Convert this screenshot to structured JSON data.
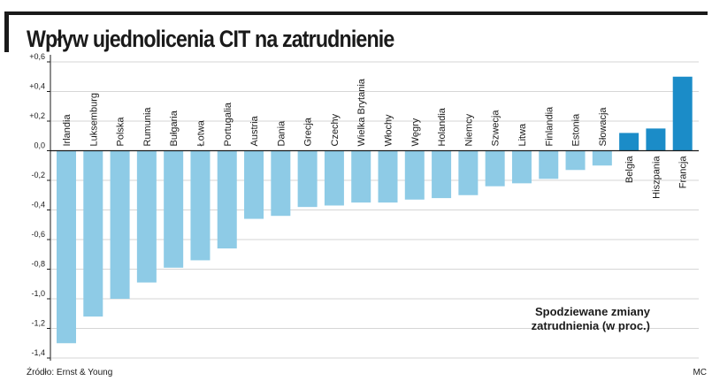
{
  "title": "Wpływ ujednolicenia CIT na zatrudnienie",
  "source": "Źródło: Ernst & Young",
  "credit": "MC",
  "colors": {
    "light": "#8ecbe6",
    "dark": "#1b8cc8",
    "axis": "#1a1a1a",
    "grid": "#d6d6d6"
  },
  "chart_data": {
    "type": "bar",
    "title": "Wpływ ujednolicenia CIT na zatrudnienie",
    "annotation": [
      "Spodziewane zmiany",
      "zatrudnienia (w proc.)"
    ],
    "ylim": [
      -1.4,
      0.6
    ],
    "yticks": [
      0.6,
      0.4,
      0.2,
      0.0,
      -0.2,
      -0.4,
      -0.6,
      -0.8,
      -1.0,
      -1.2,
      -1.4
    ],
    "ytick_labels": [
      "+0,6",
      "+0,4",
      "+0,2",
      "0,0",
      "-0,2",
      "-0,4",
      "-0,6",
      "-0,8",
      "-1,0",
      "-1,2",
      "-1,4"
    ],
    "categories": [
      "Irlandia",
      "Luksemburg",
      "Polska",
      "Rumunia",
      "Bułgaria",
      "Łotwa",
      "Portugalia",
      "Austria",
      "Dania",
      "Grecja",
      "Czechy",
      "Wielka Brytania",
      "Włochy",
      "Węgry",
      "Holandia",
      "Niemcy",
      "Szwecja",
      "Litwa",
      "Finlandia",
      "Estonia",
      "Słowacja",
      "Belgia",
      "Hiszpania",
      "Francja"
    ],
    "values": [
      -1.3,
      -1.12,
      -1.0,
      -0.89,
      -0.79,
      -0.74,
      -0.66,
      -0.46,
      -0.44,
      -0.38,
      -0.37,
      -0.35,
      -0.35,
      -0.33,
      -0.32,
      -0.3,
      -0.24,
      -0.22,
      -0.19,
      -0.13,
      -0.1,
      0.12,
      0.15,
      0.5
    ]
  }
}
